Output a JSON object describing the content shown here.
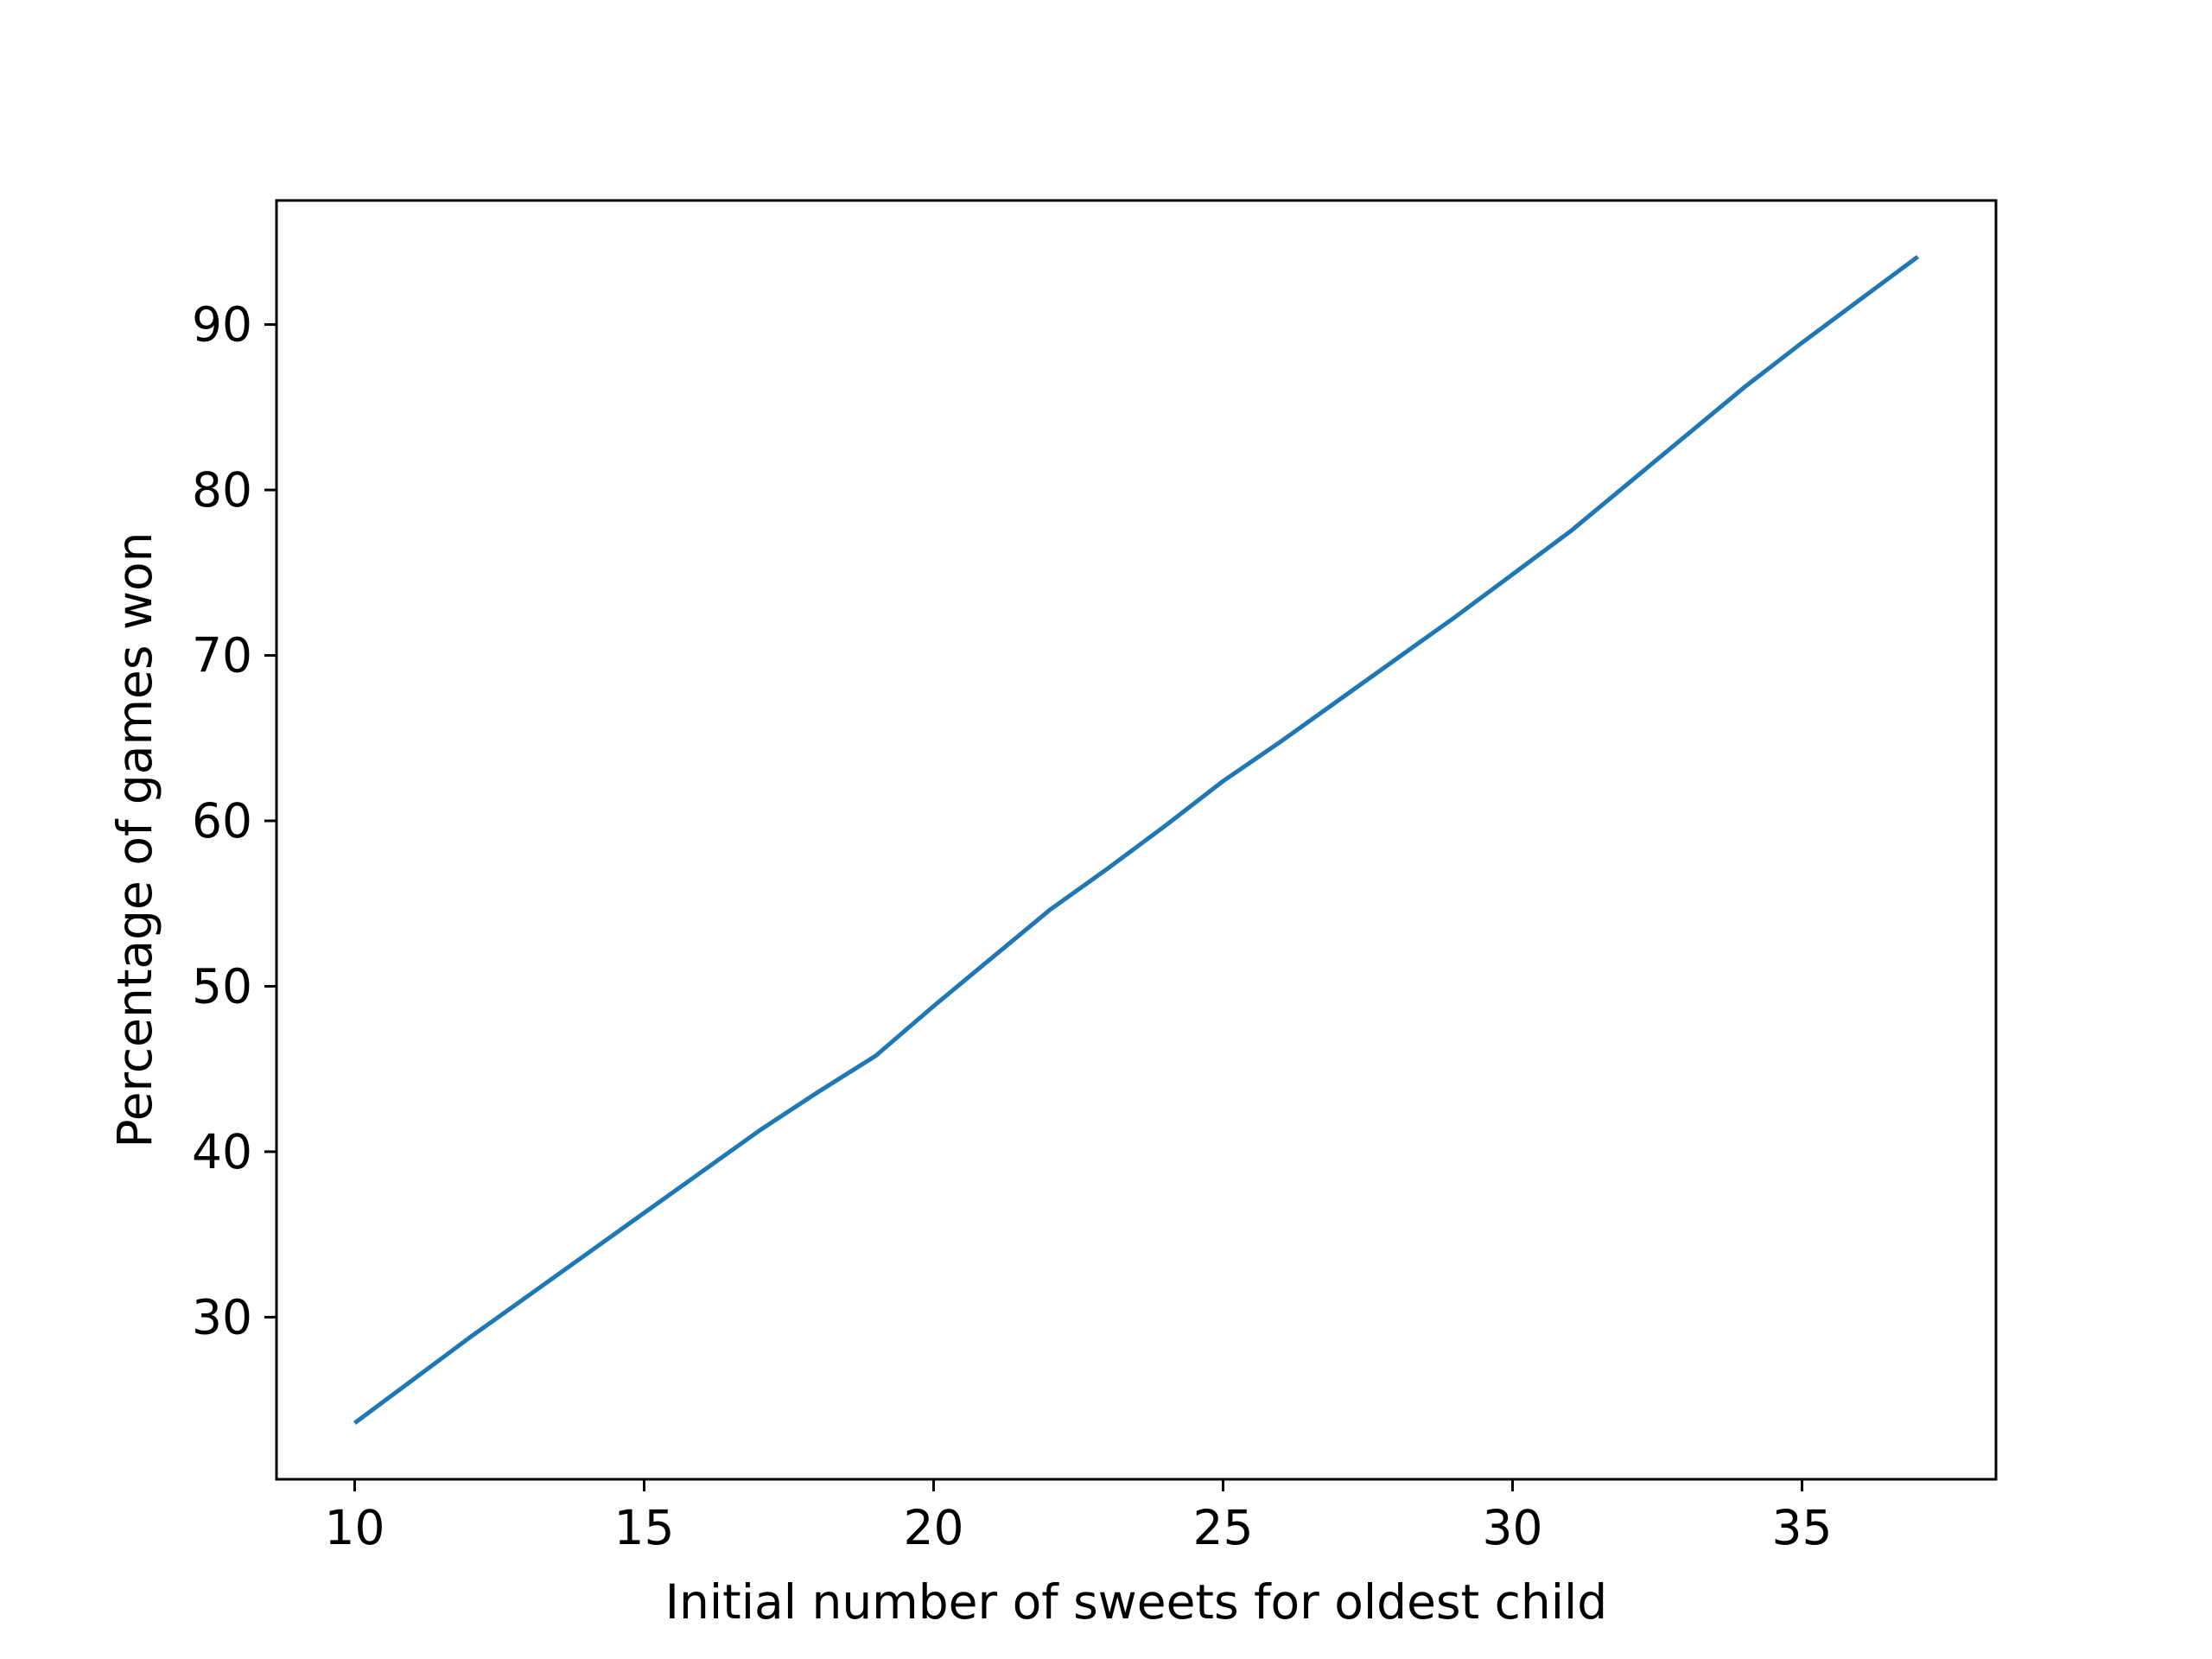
{
  "chart_data": {
    "type": "line",
    "title": "",
    "xlabel": "Initial number of sweets for oldest child",
    "ylabel": "Percentage of games won",
    "xlim": [
      8.65,
      38.35
    ],
    "ylim": [
      20.2,
      97.5
    ],
    "xticks": [
      10,
      15,
      20,
      25,
      30,
      35
    ],
    "yticks": [
      30,
      40,
      50,
      60,
      70,
      80,
      90
    ],
    "xtick_labels": [
      "10",
      "15",
      "20",
      "25",
      "30",
      "35"
    ],
    "ytick_labels": [
      "30",
      "40",
      "50",
      "60",
      "70",
      "80",
      "90"
    ],
    "grid": false,
    "legend": false,
    "series": [
      {
        "color": "#1f77b4",
        "x": [
          10,
          11,
          12,
          13,
          14,
          15,
          16,
          17,
          18,
          19,
          20,
          21,
          22,
          23,
          24,
          25,
          26,
          27,
          28,
          29,
          30,
          31,
          32,
          33,
          34,
          35,
          36,
          37
        ],
        "values": [
          23.6,
          26.2,
          28.8,
          31.3,
          33.8,
          36.3,
          38.8,
          41.3,
          43.6,
          45.8,
          48.8,
          51.7,
          54.6,
          57.1,
          59.7,
          62.4,
          64.8,
          67.3,
          69.8,
          72.3,
          74.9,
          77.5,
          80.4,
          83.3,
          86.2,
          88.9,
          91.5,
          94.1
        ]
      }
    ]
  }
}
